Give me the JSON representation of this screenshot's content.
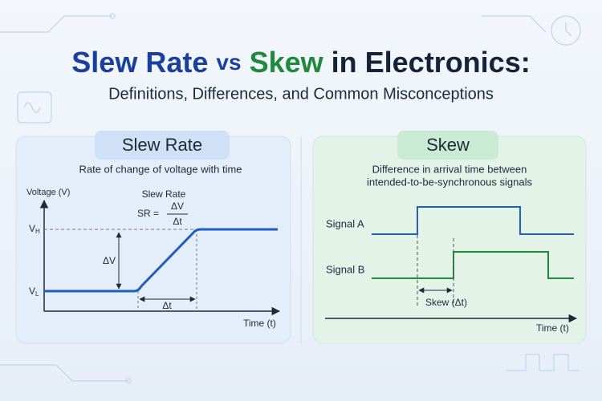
{
  "header": {
    "title": [
      {
        "text": "Slew Rate",
        "color": "#1a3f9e"
      },
      {
        "text": "vs",
        "color": "#1a3f9e"
      },
      {
        "text": "Skew",
        "color": "#1f8a3c"
      },
      {
        "text": "in Electronics:",
        "color": "#152238"
      }
    ],
    "subtitle": "Definitions, Differences, and Common Misconceptions"
  },
  "slew_panel": {
    "heading": "Slew Rate",
    "description": "Rate of change of voltage with time",
    "y_axis_label": "Voltage (V)",
    "x_axis_label": "Time (t)",
    "formula_title": "Slew Rate",
    "formula_lhs": "SR =",
    "numerator": "ΔV",
    "denominator": "Δt",
    "high_level": {
      "main": "V",
      "sub": "H"
    },
    "low_level": {
      "main": "V",
      "sub": "L"
    },
    "delta_v": "ΔV",
    "delta_t": "Δt"
  },
  "skew_panel": {
    "heading": "Skew",
    "description": [
      "Difference in arrival time between",
      "intended-to-be-synchronous signals"
    ],
    "signal_a": "Signal A",
    "signal_b": "Signal B",
    "skew_label": "Skew (Δt)",
    "x_axis_label": "Time (t)"
  }
}
